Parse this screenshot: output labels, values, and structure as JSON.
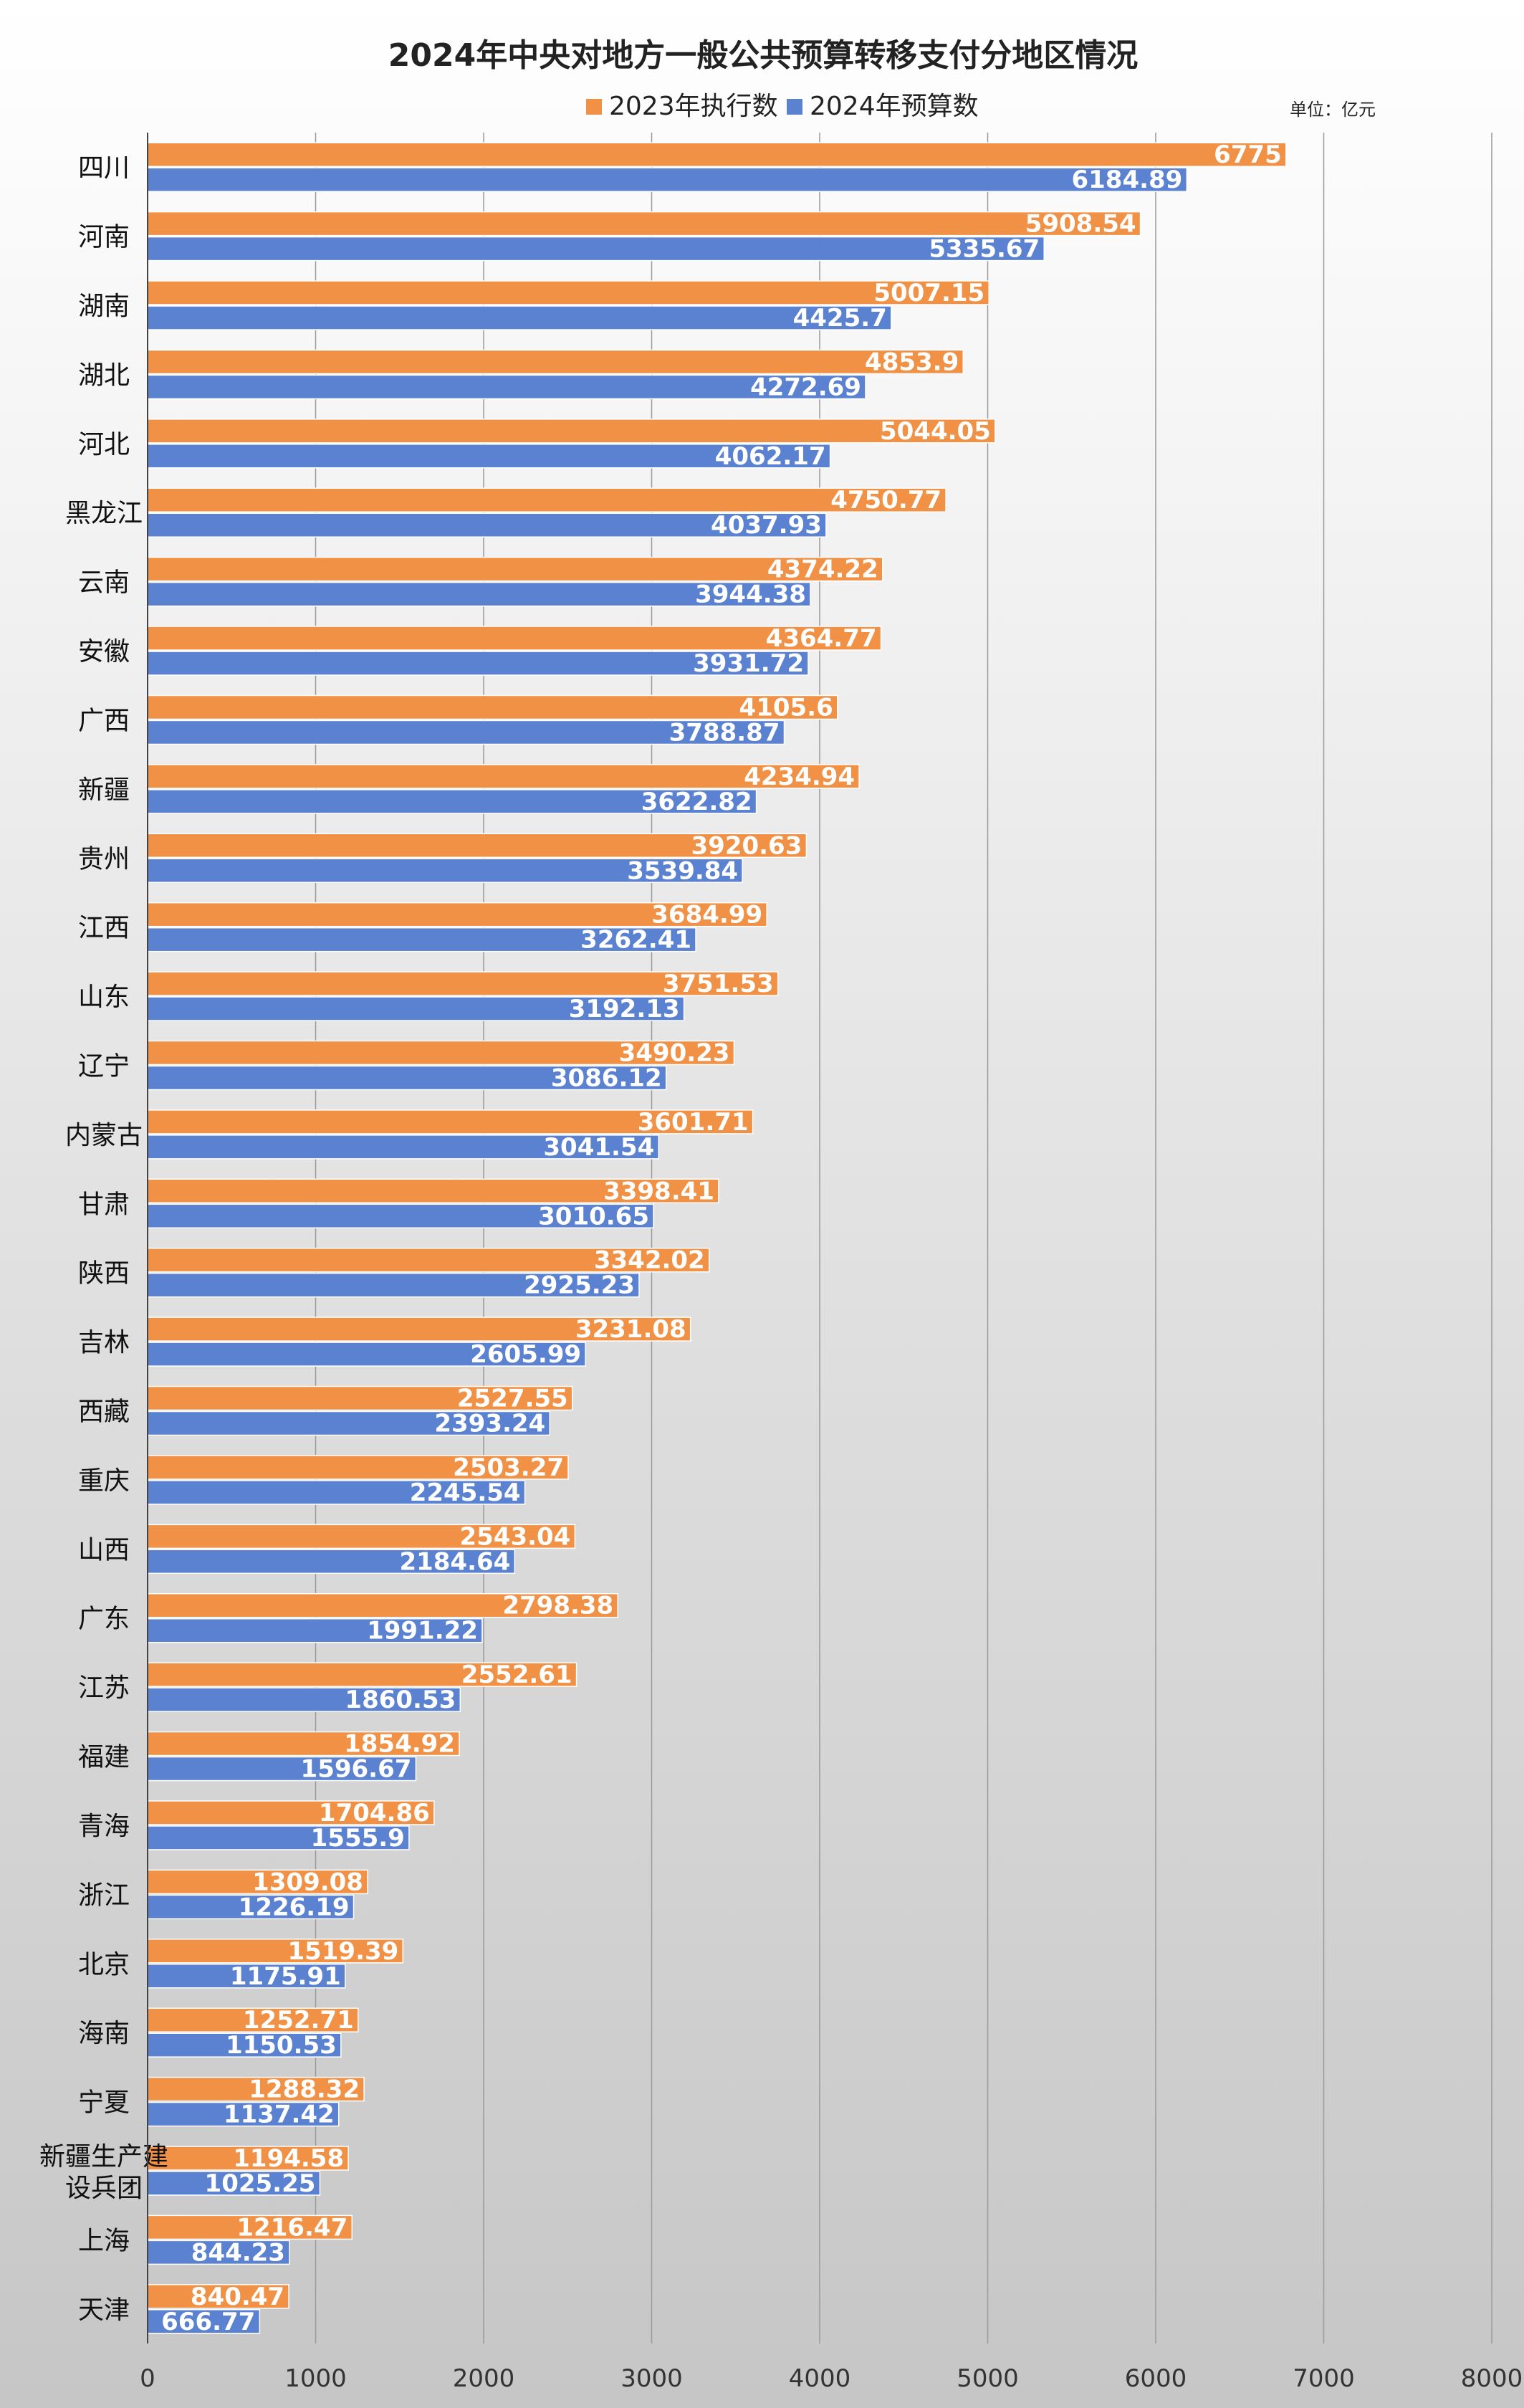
{
  "chart_data": {
    "type": "bar",
    "orientation": "horizontal",
    "title": "2024年中央对地方一般公共预算转移支付分地区情况",
    "unit": "单位：亿元",
    "legend_placement": "top",
    "grid": true,
    "xlim": [
      0,
      8000
    ],
    "xticks": [
      0,
      1000,
      2000,
      3000,
      4000,
      5000,
      6000,
      7000,
      8000
    ],
    "categories": [
      "四川",
      "河南",
      "湖南",
      "湖北",
      "河北",
      "黑龙江",
      "云南",
      "安徽",
      "广西",
      "新疆",
      "贵州",
      "江西",
      "山东",
      "辽宁",
      "内蒙古",
      "甘肃",
      "陕西",
      "吉林",
      "西藏",
      "重庆",
      "山西",
      "广东",
      "江苏",
      "福建",
      "青海",
      "浙江",
      "北京",
      "海南",
      "宁夏",
      "新疆生产建设兵团",
      "上海",
      "天津"
    ],
    "series": [
      {
        "name": "2023年执行数",
        "color": "#F09145",
        "values": [
          6775,
          5908.54,
          5007.15,
          4853.9,
          5044.05,
          4750.77,
          4374.22,
          4364.77,
          4105.6,
          4234.94,
          3920.63,
          3684.99,
          3751.53,
          3490.23,
          3601.71,
          3398.41,
          3342.02,
          3231.08,
          2527.55,
          2503.27,
          2543.04,
          2798.38,
          2552.61,
          1854.92,
          1704.86,
          1309.08,
          1519.39,
          1252.71,
          1288.32,
          1194.58,
          1216.47,
          840.47
        ]
      },
      {
        "name": "2024年预算数",
        "color": "#5B82D0",
        "values": [
          6184.89,
          5335.67,
          4425.7,
          4272.69,
          4062.17,
          4037.93,
          3944.38,
          3931.72,
          3788.87,
          3622.82,
          3539.84,
          3262.41,
          3192.13,
          3086.12,
          3041.54,
          3010.65,
          2925.23,
          2605.99,
          2393.24,
          2245.54,
          2184.64,
          1991.22,
          1860.53,
          1596.67,
          1555.9,
          1226.19,
          1175.91,
          1150.53,
          1137.42,
          1025.25,
          844.23,
          666.77
        ]
      }
    ]
  }
}
